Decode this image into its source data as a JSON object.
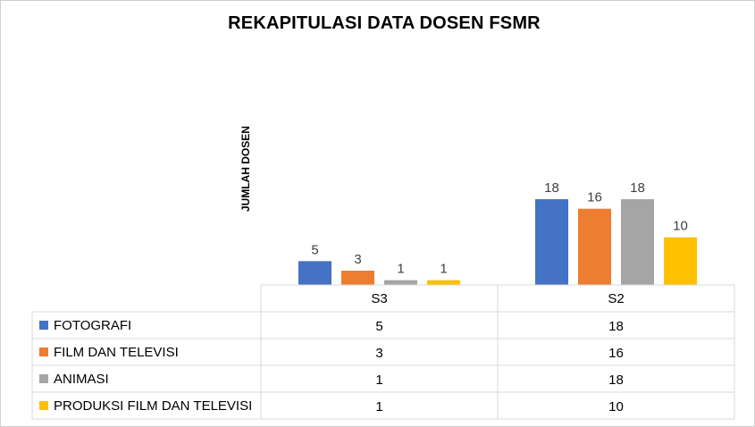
{
  "chart_data": {
    "type": "bar",
    "title": "REKAPITULASI DATA DOSEN FSMR",
    "ylabel": "JUMLAH DOSEN",
    "xlabel": "",
    "categories": [
      "S3",
      "S2"
    ],
    "ylim": [
      0,
      18
    ],
    "grid": false,
    "legend": "data-table",
    "series": [
      {
        "name": "FOTOGRAFI",
        "values": [
          5,
          18
        ],
        "color": "#4472C4"
      },
      {
        "name": "FILM DAN TELEVISI",
        "values": [
          3,
          16
        ],
        "color": "#ED7D31"
      },
      {
        "name": "ANIMASI",
        "values": [
          1,
          18
        ],
        "color": "#A5A5A5"
      },
      {
        "name": "PRODUKSI FILM DAN TELEVISI",
        "values": [
          1,
          10
        ],
        "color": "#FFC000"
      }
    ]
  }
}
